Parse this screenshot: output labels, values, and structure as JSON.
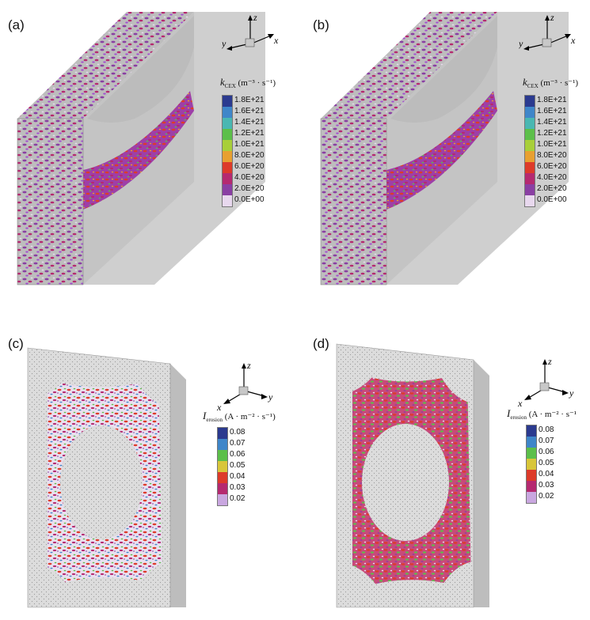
{
  "panels": [
    {
      "id": "a",
      "label": "(a)",
      "axes": {
        "vertical": "z",
        "left": "y",
        "right": "x"
      },
      "legend": {
        "symbol": "k",
        "subscript": "CEX",
        "units": "(m⁻³ · s⁻¹)",
        "ticks": [
          "1.8E+21",
          "1.6E+21",
          "1.4E+21",
          "1.2E+21",
          "1.0E+21",
          "8.0E+20",
          "6.0E+20",
          "4.0E+20",
          "2.0E+20",
          "0.0E+00"
        ]
      }
    },
    {
      "id": "b",
      "label": "(b)",
      "axes": {
        "vertical": "z",
        "left": "y",
        "right": "x"
      },
      "legend": {
        "symbol": "k",
        "subscript": "CEX",
        "units": "(m⁻³ · s⁻¹)",
        "ticks": [
          "1.8E+21",
          "1.6E+21",
          "1.4E+21",
          "1.2E+21",
          "1.0E+21",
          "8.0E+20",
          "6.0E+20",
          "4.0E+20",
          "2.0E+20",
          "0.0E+00"
        ]
      }
    },
    {
      "id": "c",
      "label": "(c)",
      "axes": {
        "vertical": "z",
        "left": "x",
        "right": "y"
      },
      "legend": {
        "symbol": "I",
        "subscript": "erosion",
        "units": "(A · m⁻² · s⁻¹)",
        "ticks": [
          "0.08",
          "0.07",
          "0.06",
          "0.05",
          "0.04",
          "0.03",
          "0.02"
        ]
      }
    },
    {
      "id": "d",
      "label": "(d)",
      "axes": {
        "vertical": "z",
        "left": "x",
        "right": "y"
      },
      "legend": {
        "symbol": "I",
        "subscript": "erosion",
        "units": "(A · m⁻² · s⁻¹",
        "ticks": [
          "0.08",
          "0.07",
          "0.06",
          "0.05",
          "0.04",
          "0.03",
          "0.02"
        ]
      }
    }
  ],
  "colors": {
    "top_legend_scale": [
      "#2b3a8f",
      "#3f86c9",
      "#49b7b2",
      "#5cbf4a",
      "#a8cf3a",
      "#e8a030",
      "#dd3b2a",
      "#b52a70",
      "#8a3fa3",
      "#e8d8ee"
    ],
    "bottom_legend_scale": [
      "#2b3a8f",
      "#3f86c9",
      "#5cbf4a",
      "#d8c63a",
      "#dd3b2a",
      "#b52a70",
      "#c9a7e0"
    ],
    "surface_gray": "#c9c9c9",
    "surface_dark": "#a9a9a9"
  }
}
